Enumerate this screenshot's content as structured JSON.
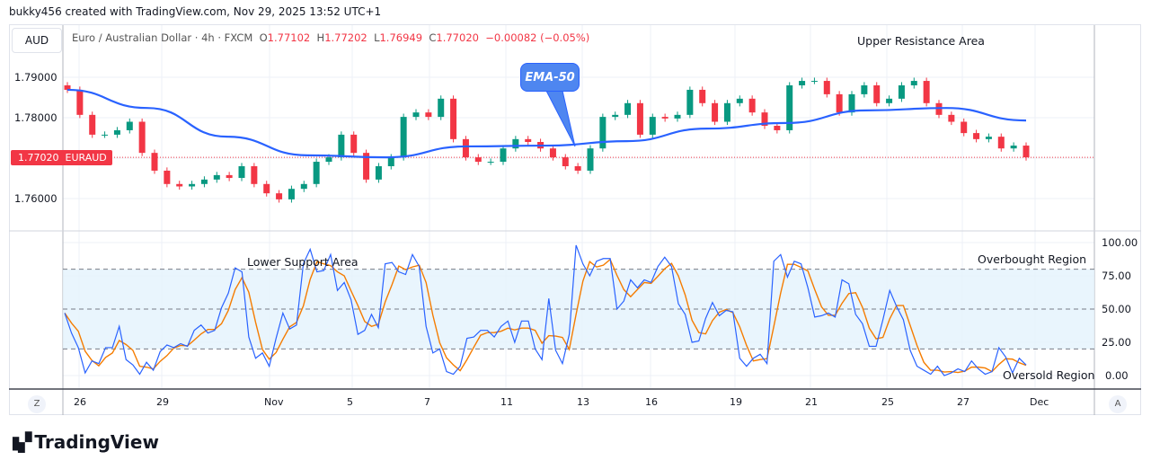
{
  "credit": "bukky456 created with TradingView.com, Nov 29, 2025 13:52 UTC+1",
  "currency_button": "AUD",
  "legend": {
    "symbol": "Euro / Australian Dollar · 4h · FXCM",
    "o_label": "O",
    "o": "1.77102",
    "h_label": "H",
    "h": "1.77202",
    "l_label": "L",
    "l": "1.76949",
    "c_label": "C",
    "c": "1.77020",
    "change": "−0.00082 (−0.05%)"
  },
  "price_axis": [
    "1.79000",
    "1.78000",
    "1.76000"
  ],
  "last_price_badge": {
    "price": "1.77020",
    "symbol": "EURAUD"
  },
  "stoch_axis": [
    "100.00",
    "75.00",
    "50.00",
    "25.00",
    "0.00"
  ],
  "time_axis": [
    "26",
    "29",
    "Nov",
    "5",
    "7",
    "11",
    "13",
    "16",
    "19",
    "21",
    "25",
    "27",
    "Dec"
  ],
  "annotations": {
    "ema": "EMA-50",
    "upper": "Upper Resistance Area",
    "lower": "Lower Support Area",
    "overbought": "Overbought Region",
    "oversold": "Oversold Region"
  },
  "corner_buttons": {
    "left": "Z",
    "right": "A"
  },
  "logo": "TradingView",
  "colors": {
    "up": "#089981",
    "down": "#f23645",
    "ema": "#2962ff",
    "k": "#2962ff",
    "d": "#f57c00",
    "band": "#e3f2fd"
  },
  "chart_data": [
    {
      "type": "candlestick",
      "title": "Euro / Australian Dollar · 4h · FXCM",
      "ylim": [
        1.755,
        1.797
      ],
      "closes": [
        1.7869,
        1.7807,
        1.7758,
        1.7758,
        1.7769,
        1.779,
        1.7713,
        1.7669,
        1.7636,
        1.763,
        1.7636,
        1.7647,
        1.7658,
        1.7651,
        1.768,
        1.7636,
        1.7613,
        1.7598,
        1.7624,
        1.7636,
        1.7691,
        1.7702,
        1.7758,
        1.7713,
        1.7647,
        1.768,
        1.7702,
        1.7802,
        1.7813,
        1.7802,
        1.7847,
        1.7747,
        1.7702,
        1.7691,
        1.7691,
        1.7724,
        1.7747,
        1.774,
        1.7724,
        1.7702,
        1.768,
        1.7669,
        1.7724,
        1.7802,
        1.7807,
        1.7836,
        1.7758,
        1.7802,
        1.7798,
        1.7807,
        1.7869,
        1.7836,
        1.779,
        1.7836,
        1.7847,
        1.7813,
        1.778,
        1.7769,
        1.788,
        1.7891,
        1.7891,
        1.7858,
        1.7813,
        1.7858,
        1.788,
        1.7836,
        1.7847,
        1.788,
        1.7891,
        1.7836,
        1.7807,
        1.779,
        1.7762,
        1.7747,
        1.7753,
        1.7724,
        1.7731,
        1.7702
      ],
      "ema50": [
        1.7869,
        1.7824,
        1.7753,
        1.7707,
        1.7702,
        1.7729,
        1.7731,
        1.7742,
        1.7773,
        1.7787,
        1.7818,
        1.7824,
        1.7793
      ],
      "last_price": 1.7702
    },
    {
      "type": "line",
      "title": "Stochastic",
      "ylim": [
        0,
        100
      ],
      "levels": [
        80,
        50,
        20
      ],
      "k": [
        47,
        32,
        21,
        2,
        11,
        9,
        21,
        21,
        37,
        12,
        8,
        1,
        10,
        4,
        18,
        23,
        21,
        24,
        22,
        34,
        38,
        32,
        34,
        51,
        62,
        81,
        78,
        29,
        13,
        17,
        7,
        28,
        47,
        35,
        38,
        84,
        95,
        78,
        79,
        91,
        64,
        70,
        57,
        31,
        34,
        46,
        36,
        84,
        85,
        78,
        76,
        91,
        82,
        37,
        17,
        20,
        3,
        1,
        7,
        28,
        29,
        34,
        34,
        29,
        37,
        41,
        25,
        41,
        41,
        20,
        12,
        58,
        19,
        9,
        31,
        98,
        84,
        75,
        86,
        88,
        88,
        50,
        56,
        72,
        66,
        72,
        70,
        82,
        89,
        82,
        54,
        46,
        25,
        26,
        43,
        55,
        45,
        49,
        48,
        13,
        7,
        13,
        16,
        9,
        86,
        91,
        74,
        86,
        84,
        66,
        44,
        45,
        47,
        44,
        72,
        69,
        46,
        39,
        22,
        22,
        42,
        64,
        52,
        42,
        19,
        7,
        4,
        1,
        7,
        0,
        2,
        5,
        3,
        11,
        5,
        1,
        3,
        21,
        14,
        2,
        13,
        8
      ]
    }
  ]
}
